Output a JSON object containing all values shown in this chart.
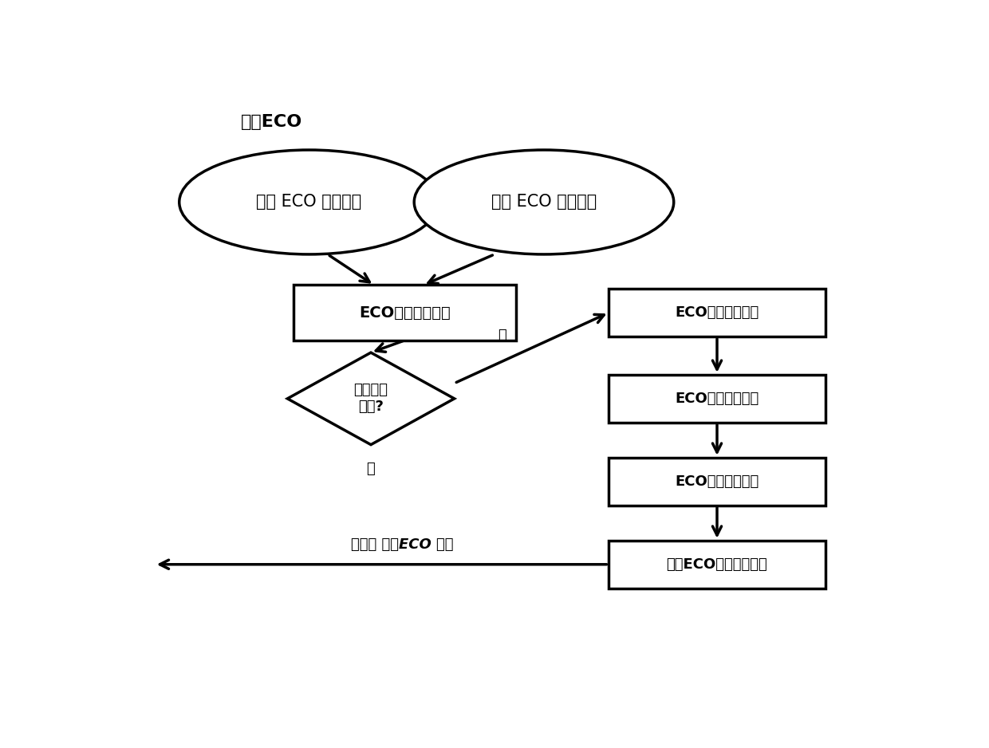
{
  "title": "功能ECO",
  "ellipse1_label": "原始 ECO 设计数据",
  "ellipse2_label": "增量 ECO 设计数据",
  "box1_label": "ECO设计结果整合",
  "diamond_label": "设计质量\n优化?",
  "diamond_yes": "是",
  "diamond_no": "否",
  "box_r1_label": "ECO设计数据获取",
  "box_r2_label": "ECO设计数据整合",
  "box_r3_label": "ECO手动优化流程",
  "box_r4_label": "获得ECO最终数据输出",
  "arrow_label": "下一次 功能ECO 迭代",
  "bg_color": "#ffffff",
  "box_color": "#ffffff",
  "box_edge": "#000000",
  "text_color": "#000000",
  "arrow_color": "#000000",
  "lw": 2.5
}
